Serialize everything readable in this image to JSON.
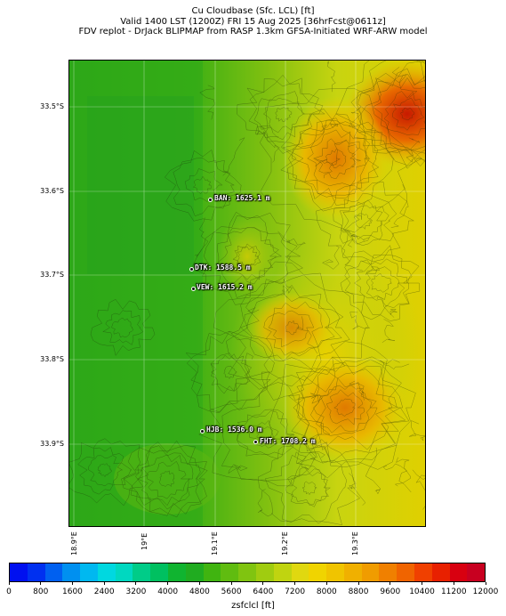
{
  "title": {
    "line1": "Cu Cloudbase (Sfc. LCL) [ft]",
    "line2": "Valid 1400 LST (1200Z) FRI 15 Aug 2025 [36hrFcst@0611z]",
    "line3": "FDV replot - DrJack BLIPMAP from RASP 1.3km GFSA-Initiated WRF-ARW model"
  },
  "lat_labels": [
    "33.5°S",
    "33.6°S",
    "33.7°S",
    "33.8°S",
    "33.9°S"
  ],
  "lon_labels": [
    "18.9°E",
    "19°E",
    "19.1°E",
    "19.2°E",
    "19.3°E"
  ],
  "stations": [
    {
      "code": "BAN",
      "label": "BAN: 1625.1 m"
    },
    {
      "code": "DTK",
      "label": "DTK: 1588.5 m"
    },
    {
      "code": "VEW",
      "label": "VEW: 1615.2 m"
    },
    {
      "code": "HJB",
      "label": "HJB: 1536.0 m"
    },
    {
      "code": "FHT",
      "label": "FHT: 1708.2 m"
    }
  ],
  "colorbar": {
    "label": "zsfclcl [ft]",
    "ticks": [
      "0",
      "800",
      "1600",
      "2400",
      "3200",
      "4000",
      "4800",
      "5600",
      "6400",
      "7200",
      "8000",
      "8800",
      "9600",
      "10400",
      "11200",
      "12000"
    ],
    "colors": [
      "#0010f0",
      "#0030f0",
      "#0060f0",
      "#0090f0",
      "#00b8f0",
      "#00d8e0",
      "#00d8c0",
      "#00cc88",
      "#00c060",
      "#10b430",
      "#20ac20",
      "#40b410",
      "#60bc10",
      "#80c410",
      "#a0cc10",
      "#c0d410",
      "#e0d810",
      "#f0d400",
      "#f0c400",
      "#f0b000",
      "#f09c00",
      "#f08000",
      "#f06400",
      "#f04000",
      "#e82000",
      "#d80010",
      "#c80020"
    ]
  }
}
